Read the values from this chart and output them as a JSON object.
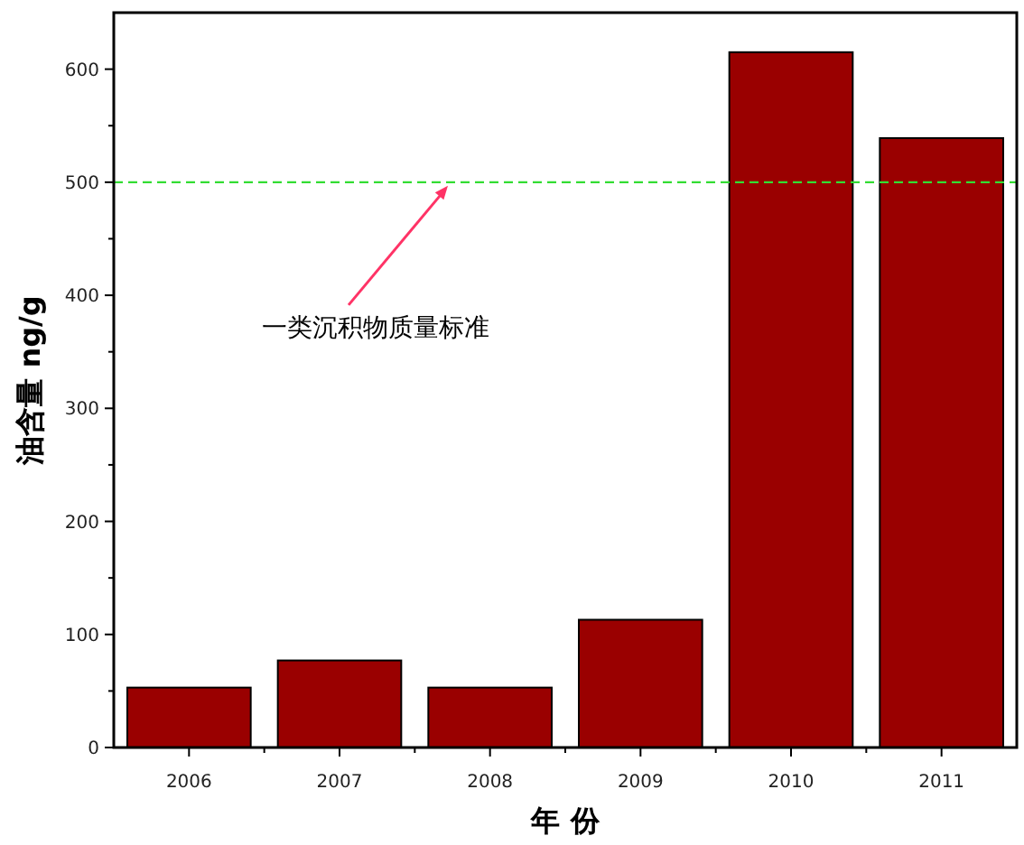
{
  "chart_data": {
    "type": "bar",
    "xlabel": "年 份",
    "ylabel": "油含量 ng/g",
    "categories": [
      "2006",
      "2007",
      "2008",
      "2009",
      "2010",
      "2011"
    ],
    "values": [
      53,
      77,
      53,
      113,
      615,
      539
    ],
    "color": "#9a0000",
    "ylim": [
      0,
      650
    ],
    "yticks": [
      0,
      {
        "value": 50,
        "label": null
      },
      100,
      {
        "value": 150,
        "label": null
      },
      200,
      {
        "value": 250,
        "label": null
      },
      300,
      {
        "value": 350,
        "label": null
      },
      400,
      {
        "value": 450,
        "label": null
      },
      500,
      {
        "value": 550,
        "label": null
      },
      600
    ],
    "ref_lines": [
      {
        "axis": "y",
        "value": 500,
        "label": "一类沉积物质量标准",
        "color": "#33dd33",
        "line_style": "dashed"
      }
    ]
  }
}
